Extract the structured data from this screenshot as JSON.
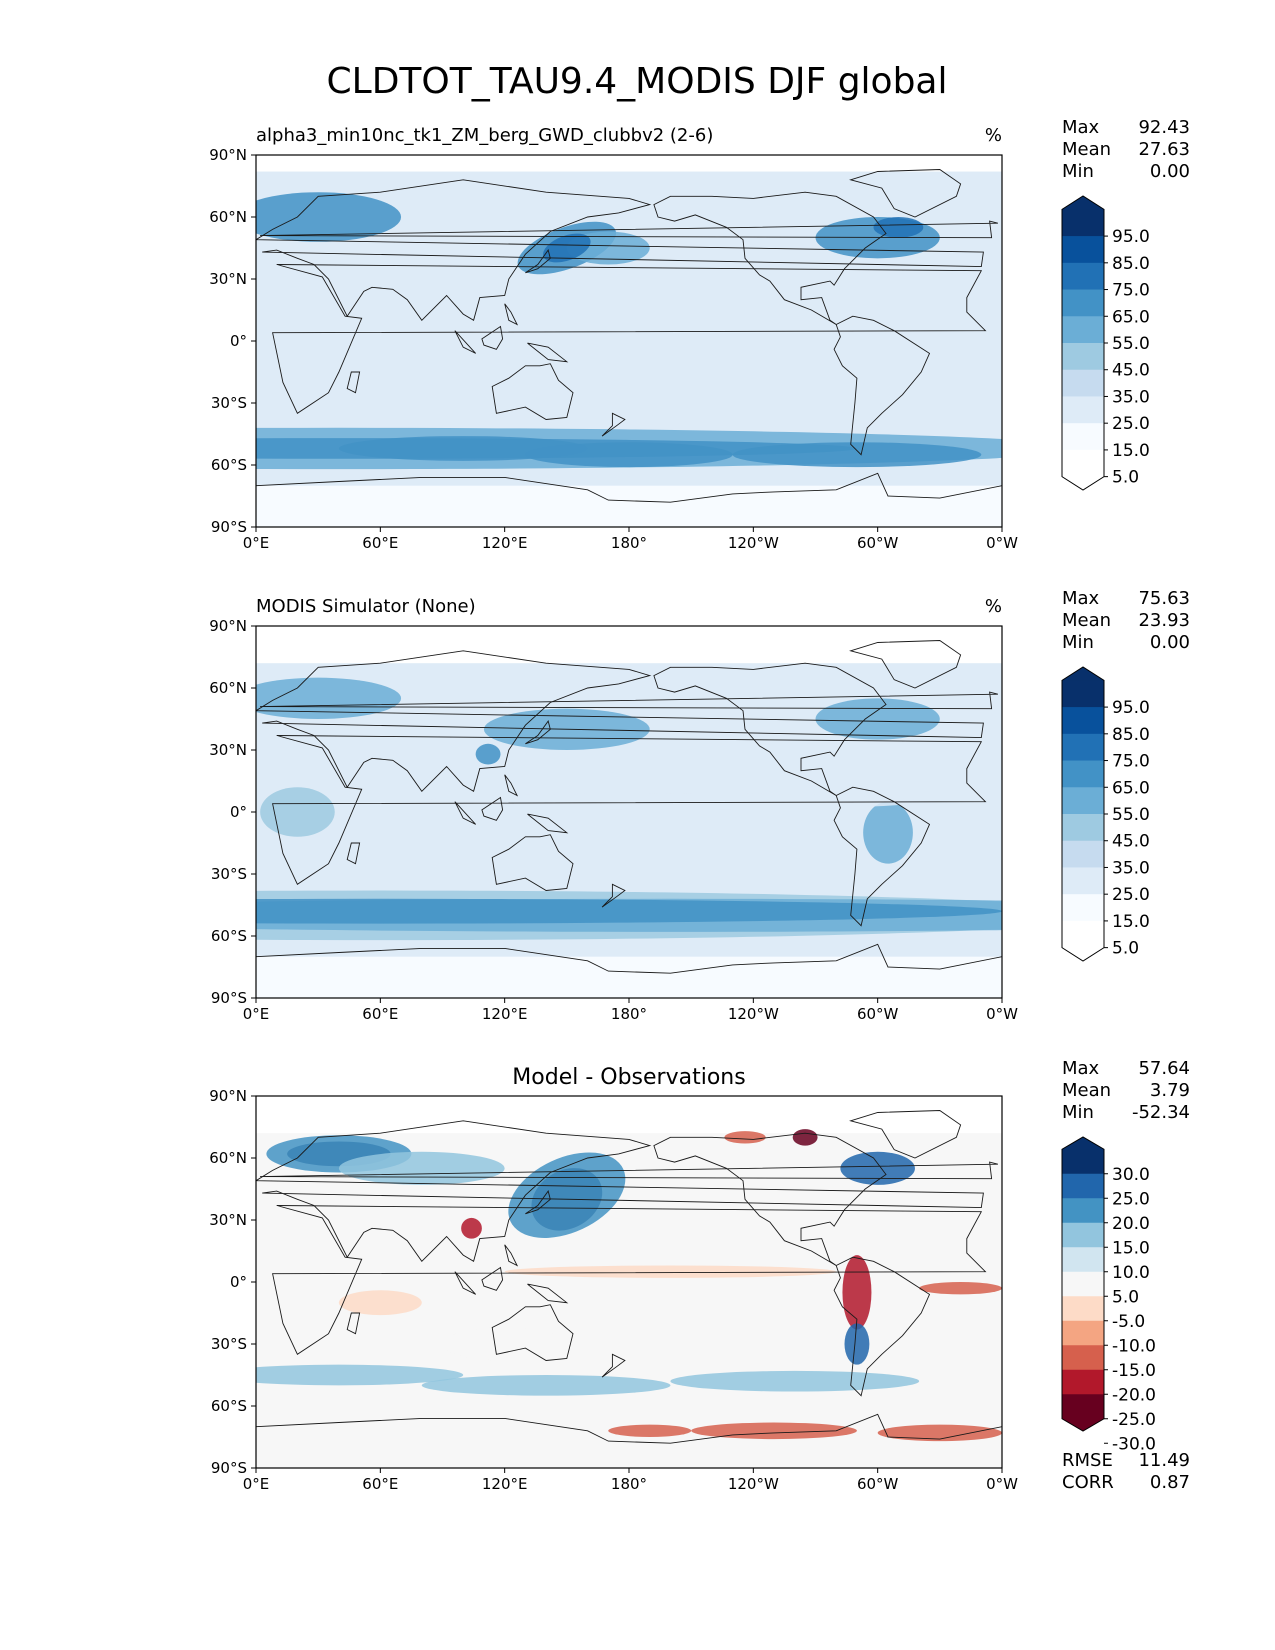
{
  "title": "CLDTOT_TAU9.4_MODIS DJF global",
  "panels": [
    {
      "left_title": "alpha3_min10nc_tk1_ZM_berg_GWD_clubbv2 (2-6)",
      "center_title": "",
      "units": "%",
      "stats": [
        {
          "label": "Max",
          "value": "92.43"
        },
        {
          "label": "Mean",
          "value": "27.63"
        },
        {
          "label": "Min",
          "value": "0.00"
        }
      ],
      "colorbar": {
        "tick_labels": [
          "95.0",
          "85.0",
          "75.0",
          "65.0",
          "55.0",
          "45.0",
          "35.0",
          "25.0",
          "15.0",
          "5.0"
        ],
        "colors": [
          "#08306b",
          "#08519c",
          "#2171b5",
          "#4292c6",
          "#6baed6",
          "#9ecae1",
          "#c6dbef",
          "#deebf7",
          "#f7fbff",
          "#ffffff"
        ]
      },
      "extra_stats": []
    },
    {
      "left_title": "MODIS Simulator (None)",
      "center_title": "",
      "units": "%",
      "stats": [
        {
          "label": "Max",
          "value": "75.63"
        },
        {
          "label": "Mean",
          "value": "23.93"
        },
        {
          "label": "Min",
          "value": "0.00"
        }
      ],
      "colorbar": {
        "tick_labels": [
          "95.0",
          "85.0",
          "75.0",
          "65.0",
          "55.0",
          "45.0",
          "35.0",
          "25.0",
          "15.0",
          "5.0"
        ],
        "colors": [
          "#08306b",
          "#08519c",
          "#2171b5",
          "#4292c6",
          "#6baed6",
          "#9ecae1",
          "#c6dbef",
          "#deebf7",
          "#f7fbff",
          "#ffffff"
        ]
      },
      "extra_stats": []
    },
    {
      "left_title": "",
      "center_title": "Model - Observations",
      "units": "",
      "stats": [
        {
          "label": "Max",
          "value": "57.64"
        },
        {
          "label": "Mean",
          "value": "3.79"
        },
        {
          "label": "Min",
          "value": "-52.34"
        }
      ],
      "colorbar": {
        "tick_labels": [
          "30.0",
          "25.0",
          "20.0",
          "15.0",
          "10.0",
          "5.0",
          "-5.0",
          "-10.0",
          "-15.0",
          "-20.0",
          "-25.0",
          "-30.0"
        ],
        "colors": [
          "#08306b",
          "#2166ac",
          "#4393c3",
          "#92c5de",
          "#d1e5f0",
          "#f7f7f7",
          "#fddbc7",
          "#f4a582",
          "#d6604d",
          "#b2182b",
          "#67001f"
        ]
      },
      "extra_stats": [
        {
          "label": "RMSE",
          "value": "11.49"
        },
        {
          "label": "CORR",
          "value": "0.87"
        }
      ]
    }
  ],
  "axes": {
    "x_ticks": [
      "0°E",
      "60°E",
      "120°E",
      "180°",
      "120°W",
      "60°W",
      "0°W"
    ],
    "y_ticks": [
      "90°N",
      "60°N",
      "30°N",
      "0°",
      "30°S",
      "60°S",
      "90°S"
    ]
  },
  "colors": {
    "land_outline": "#1a1a1a",
    "ocean_base_abs": "#deebf7",
    "ocean_base_diff": "#f7f7f7"
  }
}
